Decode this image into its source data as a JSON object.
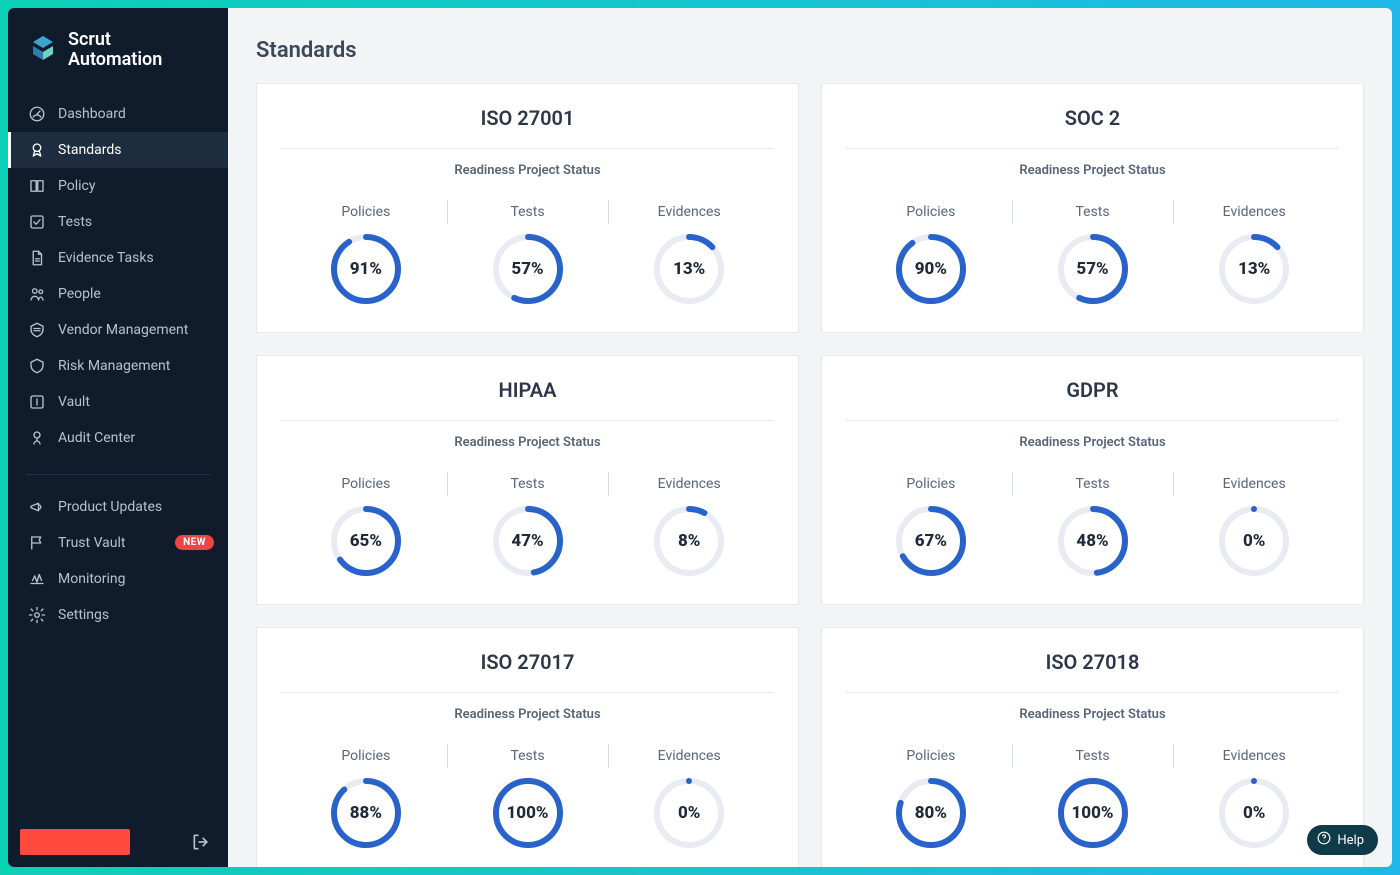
{
  "brand": {
    "line1": "Scrut",
    "line2": "Automation"
  },
  "page": {
    "title": "Standards",
    "card_subtitle": "Readiness Project Status"
  },
  "sidebar": {
    "primary": [
      {
        "label": "Dashboard",
        "icon": "dashboard-icon",
        "active": false
      },
      {
        "label": "Standards",
        "icon": "standards-icon",
        "active": true
      },
      {
        "label": "Policy",
        "icon": "policy-icon",
        "active": false
      },
      {
        "label": "Tests",
        "icon": "tests-icon",
        "active": false
      },
      {
        "label": "Evidence Tasks",
        "icon": "evidence-icon",
        "active": false
      },
      {
        "label": "People",
        "icon": "people-icon",
        "active": false
      },
      {
        "label": "Vendor Management",
        "icon": "vendor-icon",
        "active": false
      },
      {
        "label": "Risk Management",
        "icon": "risk-icon",
        "active": false
      },
      {
        "label": "Vault",
        "icon": "vault-icon",
        "active": false
      },
      {
        "label": "Audit Center",
        "icon": "audit-icon",
        "active": false
      }
    ],
    "secondary": [
      {
        "label": "Product Updates",
        "icon": "megaphone-icon",
        "badge": null
      },
      {
        "label": "Trust Vault",
        "icon": "flag-icon",
        "badge": "NEW"
      },
      {
        "label": "Monitoring",
        "icon": "monitoring-icon",
        "badge": null
      },
      {
        "label": "Settings",
        "icon": "settings-icon",
        "badge": null
      }
    ]
  },
  "metric_labels": [
    "Policies",
    "Tests",
    "Evidences"
  ],
  "donut_style": {
    "size": 70,
    "stroke_width": 6,
    "track_color": "#e8ecf2",
    "fill_color": "#2963c9",
    "text_color": "#1f2937"
  },
  "standards": [
    {
      "name": "ISO 27001",
      "policies": 91,
      "tests": 57,
      "evidences": 13
    },
    {
      "name": "SOC 2",
      "policies": 90,
      "tests": 57,
      "evidences": 13
    },
    {
      "name": "HIPAA",
      "policies": 65,
      "tests": 47,
      "evidences": 8
    },
    {
      "name": "GDPR",
      "policies": 67,
      "tests": 48,
      "evidences": 0
    },
    {
      "name": "ISO 27017",
      "policies": 88,
      "tests": 100,
      "evidences": 0
    },
    {
      "name": "ISO 27018",
      "policies": 80,
      "tests": 100,
      "evidences": 0
    }
  ],
  "help": {
    "label": "Help"
  },
  "colors": {
    "sidebar_bg": "#101c2c",
    "sidebar_active_bg": "#1e2c40",
    "page_bg": "#f3f4f6",
    "card_border": "#e6e8ec",
    "accent_gradient_start": "#0bd1b6",
    "accent_gradient_end": "#1fb8e8",
    "badge_bg": "#ef4444"
  }
}
